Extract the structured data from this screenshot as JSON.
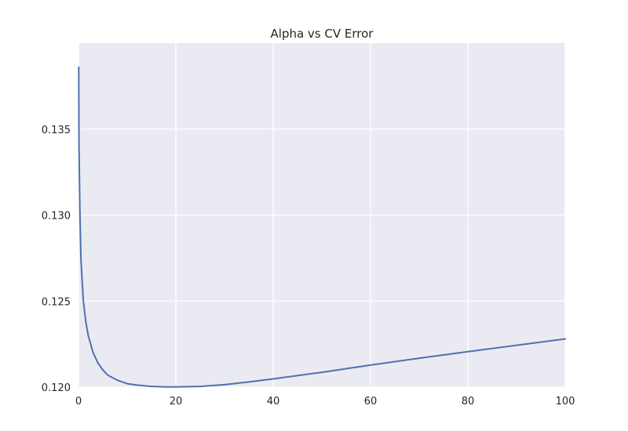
{
  "chart_data": {
    "type": "line",
    "title": "Alpha vs CV Error",
    "xlabel": "",
    "ylabel": "",
    "xlim": [
      0,
      100
    ],
    "ylim": [
      0.12,
      0.14
    ],
    "x_ticks": [
      0,
      20,
      40,
      60,
      80,
      100
    ],
    "y_ticks": [
      0.12,
      0.125,
      0.13,
      0.135
    ],
    "x_tick_labels": [
      "0",
      "20",
      "40",
      "60",
      "80",
      "100"
    ],
    "y_tick_labels": [
      "0.120",
      "0.125",
      "0.130",
      "0.135"
    ],
    "grid": true,
    "legend": "none",
    "colors": {
      "background": "#EAEAF2",
      "grid": "#FFFFFF",
      "line": "#4C72B0",
      "text": "#262626"
    },
    "series": [
      {
        "x": [
          0.05,
          0.1,
          0.3,
          0.5,
          0.75,
          1,
          1.5,
          2,
          3,
          4,
          5,
          6,
          8,
          10,
          12,
          15,
          18,
          20,
          22,
          25,
          30,
          35,
          40,
          50,
          60,
          70,
          80,
          90,
          100
        ],
        "values": [
          0.1386,
          0.134,
          0.13,
          0.1275,
          0.1262,
          0.125,
          0.1238,
          0.123,
          0.122,
          0.1214,
          0.121,
          0.1207,
          0.1204,
          0.1202,
          0.12012,
          0.12004,
          0.12001,
          0.12001,
          0.12002,
          0.12004,
          0.12014,
          0.1203,
          0.12048,
          0.12086,
          0.12128,
          0.12168,
          0.12206,
          0.12243,
          0.1228
        ]
      }
    ]
  }
}
